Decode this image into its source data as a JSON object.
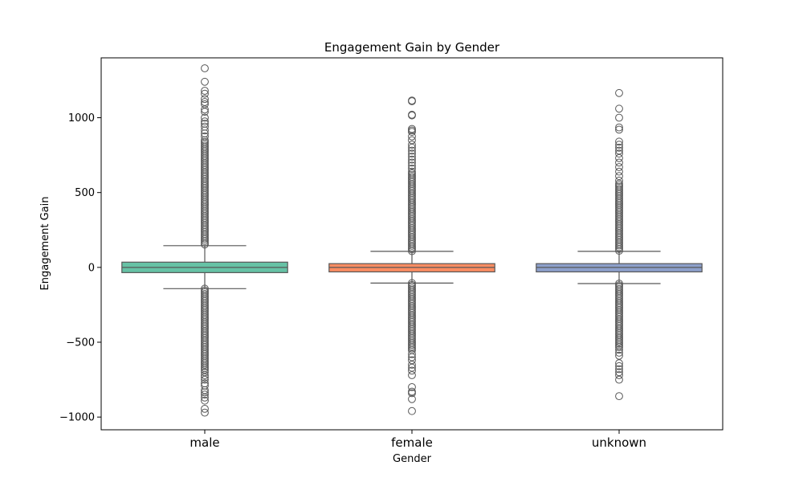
{
  "chart_data": {
    "type": "box",
    "title": "Engagement Gain by Gender",
    "xlabel": "Gender",
    "ylabel": "Engagement Gain",
    "ylim": [
      -1085,
      1400
    ],
    "yticks": [
      -1000,
      -500,
      0,
      500,
      1000
    ],
    "ytick_labels": [
      "−1000",
      "−500",
      "0",
      "500",
      "1000"
    ],
    "categories": [
      "male",
      "female",
      "unknown"
    ],
    "series": [
      {
        "category": "male",
        "color": "#66c2a5",
        "q1": -35,
        "median": 0,
        "q3": 35,
        "whisker_low": -142,
        "whisker_high": 145,
        "dense_high": [
          145,
          850
        ],
        "dense_low": [
          -690,
          -142
        ],
        "outliers": [
          1330,
          1240,
          1180,
          1160,
          1125,
          1105,
          1090,
          1055,
          1040,
          1000,
          975,
          960,
          940,
          915,
          895,
          875,
          -700,
          -720,
          -735,
          -750,
          -775,
          -790,
          -820,
          -835,
          -850,
          -870,
          -890,
          -945,
          -970
        ]
      },
      {
        "category": "female",
        "color": "#fc8d62",
        "q1": -30,
        "median": 0,
        "q3": 25,
        "whisker_low": -105,
        "whisker_high": 107,
        "dense_high": [
          107,
          640
        ],
        "dense_low": [
          -565,
          -105
        ],
        "outliers": [
          1115,
          1110,
          1020,
          1015,
          925,
          915,
          905,
          875,
          850,
          820,
          800,
          780,
          760,
          740,
          720,
          700,
          680,
          660,
          -580,
          -600,
          -620,
          -650,
          -670,
          -690,
          -720,
          -800,
          -830,
          -840,
          -880,
          -960
        ]
      },
      {
        "category": "unknown",
        "color": "#8da0cb",
        "q1": -30,
        "median": 0,
        "q3": 25,
        "whisker_low": -108,
        "whisker_high": 107,
        "dense_high": [
          107,
          560
        ],
        "dense_low": [
          -540,
          -108
        ],
        "outliers": [
          1165,
          1060,
          1000,
          935,
          920,
          840,
          820,
          800,
          780,
          760,
          730,
          700,
          670,
          640,
          610,
          580,
          -550,
          -570,
          -590,
          -640,
          -660,
          -680,
          -700,
          -720,
          -750,
          -860
        ]
      }
    ],
    "grid": false,
    "legend": "none"
  }
}
